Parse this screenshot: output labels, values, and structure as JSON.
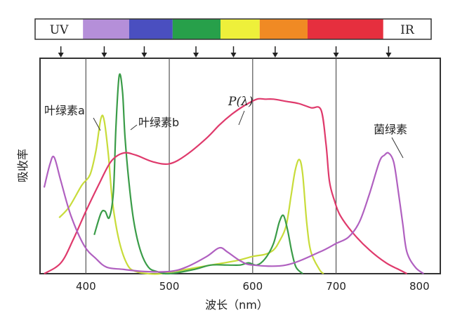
{
  "chart_data": {
    "type": "line",
    "title": "",
    "xlabel": "波长（nm）",
    "ylabel": "吸收率",
    "xlim": [
      345,
      825
    ],
    "ylim": [
      0,
      1.0
    ],
    "x_ticks": [
      "400",
      "500",
      "600",
      "700",
      "800"
    ],
    "grid_x": [
      400,
      500,
      600,
      700
    ],
    "spectrum_bands": [
      {
        "label": "UV",
        "from": 345,
        "to": 400,
        "color": "#ffffff"
      },
      {
        "label": "",
        "from": 400,
        "to": 453,
        "color": "#b58fd9"
      },
      {
        "label": "",
        "from": 453,
        "to": 503,
        "color": "#4a4fc0"
      },
      {
        "label": "",
        "from": 503,
        "to": 558,
        "color": "#27a04a"
      },
      {
        "label": "",
        "from": 558,
        "to": 603,
        "color": "#eef03a"
      },
      {
        "label": "",
        "from": 603,
        "to": 658,
        "color": "#f08a24"
      },
      {
        "label": "",
        "from": 658,
        "to": 745,
        "color": "#e62f3e"
      },
      {
        "label": "IR",
        "from": 745,
        "to": 800,
        "color": "#ffffff"
      }
    ],
    "arrow_wavelengths": [
      370,
      422,
      470,
      532,
      577,
      627,
      700,
      763
    ],
    "series": [
      {
        "name": "叶绿素a",
        "color": "#c8dc3a",
        "x": [
          368,
          380,
          395,
          405,
          412,
          418,
          422,
          427,
          432,
          440,
          450,
          460,
          475,
          490,
          520,
          550,
          580,
          600,
          615,
          625,
          632,
          640,
          646,
          651,
          656,
          660,
          665,
          670,
          680,
          685
        ],
        "y": [
          0.26,
          0.31,
          0.41,
          0.46,
          0.57,
          0.72,
          0.71,
          0.55,
          0.33,
          0.15,
          0.04,
          0.01,
          0.0,
          0.0,
          0.02,
          0.04,
          0.06,
          0.08,
          0.09,
          0.11,
          0.15,
          0.22,
          0.36,
          0.48,
          0.53,
          0.46,
          0.23,
          0.1,
          0.02,
          0.0
        ]
      },
      {
        "name": "叶绿素b",
        "color": "#3a9c48",
        "x": [
          410,
          418,
          423,
          428,
          433,
          436,
          440,
          444,
          447,
          452,
          458,
          466,
          475,
          485,
          500,
          530,
          550,
          570,
          585,
          595,
          605,
          615,
          625,
          632,
          637,
          642,
          647,
          652,
          660
        ],
        "y": [
          0.18,
          0.28,
          0.29,
          0.26,
          0.38,
          0.68,
          0.92,
          0.84,
          0.63,
          0.41,
          0.23,
          0.1,
          0.03,
          0.01,
          0.0,
          0.02,
          0.04,
          0.04,
          0.04,
          0.05,
          0.04,
          0.07,
          0.14,
          0.24,
          0.27,
          0.2,
          0.1,
          0.03,
          0.0
        ]
      },
      {
        "name": "P(λ)",
        "color": "#df3a6c",
        "x": [
          350,
          370,
          385,
          400,
          415,
          430,
          445,
          460,
          480,
          500,
          520,
          545,
          560,
          575,
          590,
          605,
          615,
          625,
          640,
          655,
          670,
          682,
          688,
          692,
          698,
          705,
          720,
          740,
          760,
          775,
          785
        ],
        "y": [
          0.0,
          0.05,
          0.16,
          0.29,
          0.41,
          0.52,
          0.56,
          0.55,
          0.52,
          0.51,
          0.55,
          0.63,
          0.69,
          0.74,
          0.78,
          0.81,
          0.81,
          0.81,
          0.8,
          0.79,
          0.77,
          0.76,
          0.6,
          0.43,
          0.34,
          0.27,
          0.19,
          0.11,
          0.05,
          0.02,
          0.0
        ]
      },
      {
        "name": "菌绿素",
        "color": "#b060c0",
        "x": [
          350,
          357,
          362,
          370,
          382,
          398,
          412,
          425,
          445,
          470,
          500,
          520,
          545,
          560,
          570,
          585,
          600,
          640,
          680,
          700,
          715,
          728,
          740,
          752,
          758,
          763,
          769,
          774,
          780,
          785,
          795,
          805
        ],
        "y": [
          0.4,
          0.51,
          0.54,
          0.43,
          0.27,
          0.13,
          0.07,
          0.03,
          0.02,
          0.01,
          0.01,
          0.03,
          0.08,
          0.12,
          0.1,
          0.06,
          0.04,
          0.04,
          0.1,
          0.14,
          0.17,
          0.24,
          0.37,
          0.52,
          0.55,
          0.56,
          0.52,
          0.4,
          0.23,
          0.1,
          0.03,
          0.0
        ]
      }
    ],
    "annotations": [
      {
        "text": "叶绿素a",
        "series": "叶绿素a"
      },
      {
        "text": "叶绿素b",
        "series": "叶绿素b"
      },
      {
        "text": "P(λ)",
        "series": "P(λ)"
      },
      {
        "text": "菌绿素",
        "series": "菌绿素"
      }
    ]
  }
}
